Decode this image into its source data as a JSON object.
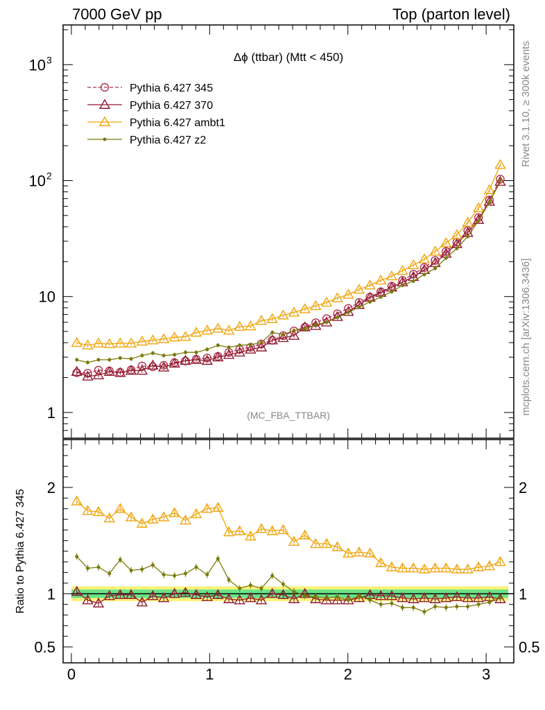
{
  "header": {
    "left": "7000 GeV pp",
    "right": "Top (parton level)"
  },
  "side_labels": {
    "rivet": "Rivet 3.1.10, ≥ 300k events",
    "mcplots": "mcplots.cern.ch [arXiv:1306.3436]"
  },
  "chart_data": [
    {
      "type": "line",
      "panel": "main",
      "title": "Δϕ (ttbar) (Mtt < 450)",
      "watermark": "(MC_FBA_TTBAR)",
      "yscale": "log",
      "xlim": [
        -0.06,
        3.2
      ],
      "ylim": [
        0.6,
        2200
      ],
      "yticks": [
        {
          "v": 1,
          "label": "1"
        },
        {
          "v": 10,
          "label": "10"
        },
        {
          "v": 100,
          "label": "10",
          "sup": "2"
        },
        {
          "v": 1000,
          "label": "10",
          "sup": "3"
        }
      ],
      "legend_position": "top-left",
      "x": [
        0.039,
        0.118,
        0.196,
        0.275,
        0.353,
        0.432,
        0.511,
        0.589,
        0.668,
        0.746,
        0.825,
        0.903,
        0.982,
        1.06,
        1.139,
        1.217,
        1.296,
        1.374,
        1.453,
        1.532,
        1.61,
        1.689,
        1.767,
        1.846,
        1.924,
        2.003,
        2.081,
        2.16,
        2.238,
        2.317,
        2.395,
        2.474,
        2.553,
        2.631,
        2.71,
        2.788,
        2.867,
        2.945,
        3.024,
        3.102
      ],
      "series": [
        {
          "name": "Pythia 6.427 345",
          "color": "#b22c4c",
          "marker": "circle-open",
          "dash": true,
          "values": [
            2.2,
            2.18,
            2.32,
            2.28,
            2.22,
            2.33,
            2.52,
            2.48,
            2.55,
            2.7,
            2.78,
            2.88,
            2.95,
            3.05,
            3.3,
            3.5,
            3.65,
            3.9,
            4.2,
            4.6,
            5.05,
            5.45,
            5.95,
            6.45,
            7.1,
            7.9,
            8.9,
            9.9,
            11.0,
            12.3,
            13.8,
            15.6,
            17.8,
            20.5,
            24.5,
            29.5,
            37.0,
            48.0,
            68.0,
            103.0
          ]
        },
        {
          "name": "Pythia 6.427 370",
          "color": "#8f1a2e",
          "marker": "triangle-open",
          "dash": false,
          "values": [
            2.25,
            2.05,
            2.1,
            2.25,
            2.2,
            2.3,
            2.3,
            2.55,
            2.45,
            2.65,
            2.8,
            2.85,
            2.8,
            3.0,
            3.15,
            3.3,
            3.5,
            3.65,
            4.2,
            4.4,
            4.6,
            5.45,
            5.6,
            6.0,
            6.7,
            7.4,
            8.5,
            9.8,
            10.8,
            12.0,
            13.3,
            14.8,
            17.0,
            19.5,
            23.5,
            28.5,
            35.5,
            46.0,
            66.0,
            98.0
          ]
        },
        {
          "name": "Pythia 6.427 ambt1",
          "color": "#f0a30a",
          "marker": "triangle-open",
          "dash": false,
          "values": [
            4.0,
            3.8,
            3.95,
            3.9,
            3.95,
            3.95,
            4.1,
            4.2,
            4.3,
            4.45,
            4.5,
            4.9,
            5.1,
            5.3,
            5.1,
            5.5,
            5.55,
            6.2,
            6.4,
            6.9,
            7.3,
            7.8,
            8.3,
            8.9,
            9.7,
            10.4,
            11.5,
            12.5,
            13.8,
            15.0,
            16.7,
            18.7,
            21.0,
            24.5,
            29.0,
            34.0,
            43.5,
            58.0,
            83.0,
            137.0
          ]
        },
        {
          "name": "Pythia 6.427 z2",
          "color": "#7a7a0a",
          "marker": "dot",
          "dash": false,
          "values": [
            2.85,
            2.7,
            2.85,
            2.85,
            2.95,
            2.9,
            3.1,
            3.25,
            3.1,
            3.15,
            3.3,
            3.3,
            3.5,
            3.8,
            3.65,
            3.8,
            3.85,
            4.0,
            4.9,
            4.7,
            5.1,
            5.25,
            5.7,
            6.0,
            6.6,
            7.3,
            8.1,
            9.0,
            9.9,
            11.0,
            12.5,
            13.6,
            15.5,
            17.5,
            21.5,
            26.0,
            33.0,
            45.0,
            65.0,
            101.0
          ]
        }
      ]
    },
    {
      "type": "line",
      "panel": "ratio",
      "ylabel": "Ratio to Pythia 6.427 345",
      "yscale": "linear",
      "xlim": [
        -0.06,
        3.2
      ],
      "ylim": [
        0.35,
        2.45
      ],
      "yticks": [
        {
          "v": 0.5,
          "label": "0.5"
        },
        {
          "v": 1,
          "label": "1"
        },
        {
          "v": 2,
          "label": "2"
        }
      ],
      "xticks": [
        {
          "v": 0,
          "label": "0"
        },
        {
          "v": 1,
          "label": "1"
        },
        {
          "v": 2,
          "label": "2"
        },
        {
          "v": 3,
          "label": "3"
        }
      ],
      "band_inner": {
        "color": "#6be388",
        "half_width": 0.04
      },
      "band_outer": {
        "color": "#fff27a",
        "half_width": 0.07
      },
      "x": [
        0.039,
        0.118,
        0.196,
        0.275,
        0.353,
        0.432,
        0.511,
        0.589,
        0.668,
        0.746,
        0.825,
        0.903,
        0.982,
        1.06,
        1.139,
        1.217,
        1.296,
        1.374,
        1.453,
        1.532,
        1.61,
        1.689,
        1.767,
        1.846,
        1.924,
        2.003,
        2.081,
        2.16,
        2.238,
        2.317,
        2.395,
        2.474,
        2.553,
        2.631,
        2.71,
        2.788,
        2.867,
        2.945,
        3.024,
        3.102
      ],
      "series": [
        {
          "name": "Pythia 6.427 370",
          "color": "#8f1a2e",
          "marker": "triangle-open",
          "values": [
            1.02,
            0.94,
            0.91,
            0.98,
            0.99,
            0.99,
            0.92,
            0.98,
            0.96,
            1.0,
            1.01,
            0.99,
            0.97,
            0.99,
            0.95,
            0.94,
            0.96,
            0.94,
            1.0,
            0.99,
            0.95,
            1.0,
            0.95,
            0.94,
            0.94,
            0.94,
            0.96,
            0.99,
            0.98,
            0.98,
            0.96,
            0.95,
            0.96,
            0.95,
            0.96,
            0.97,
            0.96,
            0.96,
            0.97,
            0.95
          ]
        },
        {
          "name": "Pythia 6.427 ambt1",
          "color": "#f0a30a",
          "marker": "triangle-open",
          "values": [
            1.87,
            1.78,
            1.77,
            1.71,
            1.8,
            1.72,
            1.66,
            1.7,
            1.72,
            1.76,
            1.69,
            1.75,
            1.8,
            1.81,
            1.58,
            1.59,
            1.54,
            1.61,
            1.59,
            1.6,
            1.49,
            1.55,
            1.47,
            1.47,
            1.44,
            1.38,
            1.39,
            1.38,
            1.29,
            1.25,
            1.24,
            1.24,
            1.23,
            1.24,
            1.24,
            1.23,
            1.23,
            1.25,
            1.26,
            1.3
          ]
        },
        {
          "name": "Pythia 6.427 z2",
          "color": "#7a7a0a",
          "marker": "dot",
          "values": [
            1.35,
            1.24,
            1.25,
            1.19,
            1.32,
            1.22,
            1.23,
            1.27,
            1.18,
            1.17,
            1.19,
            1.25,
            1.18,
            1.33,
            1.13,
            1.05,
            1.08,
            1.05,
            1.17,
            1.09,
            1.02,
            0.98,
            0.97,
            0.96,
            0.97,
            0.94,
            0.98,
            0.94,
            0.9,
            0.91,
            0.87,
            0.87,
            0.83,
            0.88,
            0.87,
            0.88,
            0.88,
            0.9,
            0.92,
            0.96
          ]
        }
      ]
    }
  ]
}
